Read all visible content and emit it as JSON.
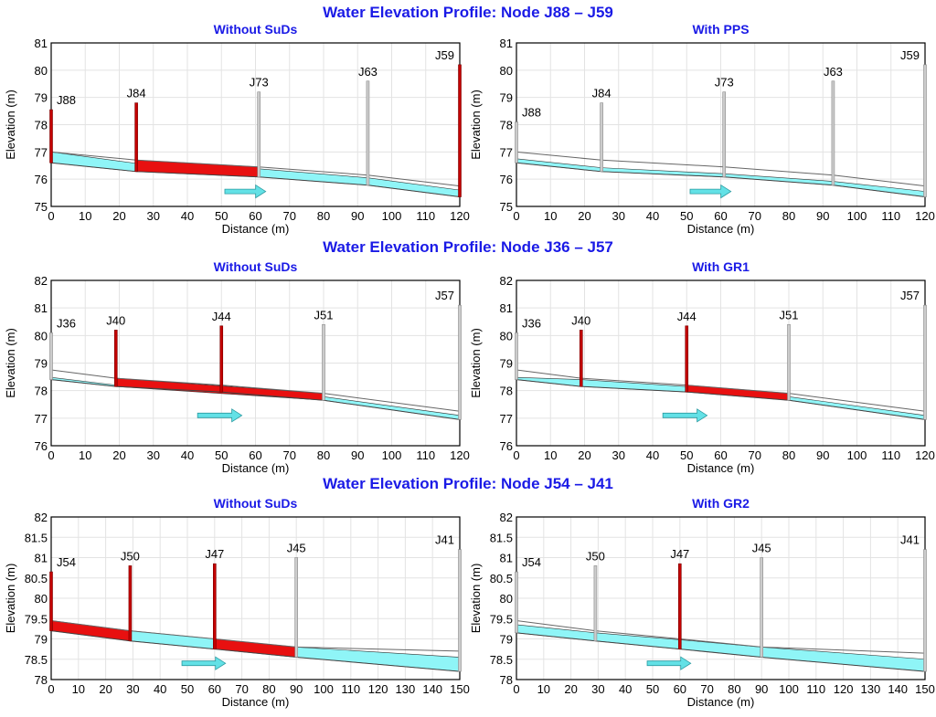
{
  "colors": {
    "surcharge": "#e81010",
    "water": "#8ff5f7",
    "pipe_outline": "#666666",
    "node_red": "#c40000",
    "node_grey": "#cccccc",
    "arrow": "#63e1e6",
    "title": "#1a1ae6",
    "grid": "#e3e3e3"
  },
  "sections": [
    {
      "title": "Water Elevation Profile:  Node J88 – J59"
    },
    {
      "title": "Water Elevation Profile:  Node J36 – J57"
    },
    {
      "title": "Water Elevation Profile:  Node J54 – J41"
    }
  ],
  "chart_data": [
    {
      "type": "area",
      "title": "Without SuDs",
      "xlabel": "Distance (m)",
      "ylabel": "Elevation (m)",
      "xlim": [
        0,
        120
      ],
      "ylim": [
        75,
        81
      ],
      "xticks": [
        0,
        10,
        20,
        30,
        40,
        50,
        60,
        70,
        80,
        90,
        100,
        110,
        120
      ],
      "yticks": [
        75,
        76,
        77,
        78,
        79,
        80,
        81
      ],
      "nodes": [
        {
          "name": "J88",
          "x": 0,
          "invert": 76.6,
          "crown": 77.0,
          "rim": 78.55,
          "surcharged": true
        },
        {
          "name": "J84",
          "x": 25,
          "invert": 76.28,
          "crown": 76.7,
          "rim": 78.8,
          "surcharged": true
        },
        {
          "name": "J73",
          "x": 61,
          "invert": 76.08,
          "crown": 76.45,
          "rim": 79.2,
          "surcharged": false
        },
        {
          "name": "J63",
          "x": 93,
          "invert": 75.78,
          "crown": 76.15,
          "rim": 79.6,
          "surcharged": false
        },
        {
          "name": "J59",
          "x": 120,
          "invert": 75.35,
          "crown": 75.75,
          "rim": 80.2,
          "surcharged": true
        }
      ],
      "water": [
        {
          "x": 0,
          "low": 76.6,
          "high": 77.0,
          "full": false
        },
        {
          "x": 25,
          "low": 76.28,
          "high": 76.58,
          "full": false
        },
        {
          "x": 25,
          "low": 76.28,
          "high": 76.7,
          "full": true
        },
        {
          "x": 61,
          "low": 76.08,
          "high": 76.45,
          "full": true
        },
        {
          "x": 61,
          "low": 76.08,
          "high": 76.38,
          "full": false
        },
        {
          "x": 93,
          "low": 75.78,
          "high": 76.05,
          "full": false
        },
        {
          "x": 120,
          "low": 75.35,
          "high": 75.6,
          "full": false
        }
      ],
      "flow_arrow": {
        "x_from": 51,
        "x_to": 63,
        "y": 75.55
      }
    },
    {
      "type": "area",
      "title": "With PPS",
      "xlabel": "Distance (m)",
      "ylabel": "Elevation (m)",
      "xlim": [
        0,
        120
      ],
      "ylim": [
        75,
        81
      ],
      "xticks": [
        0,
        10,
        20,
        30,
        40,
        50,
        60,
        70,
        80,
        90,
        100,
        110,
        120
      ],
      "yticks": [
        75,
        76,
        77,
        78,
        79,
        80,
        81
      ],
      "nodes": [
        {
          "name": "J88",
          "x": 0,
          "invert": 76.6,
          "crown": 77.0,
          "rim": 78.1,
          "surcharged": false
        },
        {
          "name": "J84",
          "x": 25,
          "invert": 76.28,
          "crown": 76.7,
          "rim": 78.8,
          "surcharged": false
        },
        {
          "name": "J73",
          "x": 61,
          "invert": 76.08,
          "crown": 76.45,
          "rim": 79.2,
          "surcharged": false
        },
        {
          "name": "J63",
          "x": 93,
          "invert": 75.78,
          "crown": 76.15,
          "rim": 79.6,
          "surcharged": false
        },
        {
          "name": "J59",
          "x": 120,
          "invert": 75.35,
          "crown": 75.75,
          "rim": 80.2,
          "surcharged": false
        }
      ],
      "water": [
        {
          "x": 0,
          "low": 76.6,
          "high": 76.75,
          "full": false
        },
        {
          "x": 25,
          "low": 76.28,
          "high": 76.42,
          "full": false
        },
        {
          "x": 61,
          "low": 76.08,
          "high": 76.2,
          "full": false
        },
        {
          "x": 93,
          "low": 75.78,
          "high": 75.92,
          "full": false
        },
        {
          "x": 120,
          "low": 75.35,
          "high": 75.55,
          "full": false
        }
      ],
      "flow_arrow": {
        "x_from": 51,
        "x_to": 63,
        "y": 75.55
      }
    },
    {
      "type": "area",
      "title": "Without SuDs",
      "xlabel": "Distance (m)",
      "ylabel": "Elevation (m)",
      "xlim": [
        0,
        120
      ],
      "ylim": [
        76,
        82
      ],
      "xticks": [
        0,
        10,
        20,
        30,
        40,
        50,
        60,
        70,
        80,
        90,
        100,
        110,
        120
      ],
      "yticks": [
        76,
        77,
        78,
        79,
        80,
        81,
        82
      ],
      "nodes": [
        {
          "name": "J36",
          "x": 0,
          "invert": 78.4,
          "crown": 78.75,
          "rim": 80.1,
          "surcharged": false
        },
        {
          "name": "J40",
          "x": 19,
          "invert": 78.15,
          "crown": 78.45,
          "rim": 80.2,
          "surcharged": true
        },
        {
          "name": "J44",
          "x": 50,
          "invert": 77.95,
          "crown": 78.2,
          "rim": 80.35,
          "surcharged": true
        },
        {
          "name": "J51",
          "x": 80,
          "invert": 77.65,
          "crown": 77.9,
          "rim": 80.4,
          "surcharged": false
        },
        {
          "name": "J57",
          "x": 120,
          "invert": 76.95,
          "crown": 77.25,
          "rim": 81.1,
          "surcharged": false
        }
      ],
      "water": [
        {
          "x": 0,
          "low": 78.4,
          "high": 78.48,
          "full": false
        },
        {
          "x": 19,
          "low": 78.15,
          "high": 78.2,
          "full": false
        },
        {
          "x": 19,
          "low": 78.15,
          "high": 78.45,
          "full": true
        },
        {
          "x": 80,
          "low": 77.65,
          "high": 77.9,
          "full": true
        },
        {
          "x": 80,
          "low": 77.65,
          "high": 77.78,
          "full": false
        },
        {
          "x": 120,
          "low": 76.95,
          "high": 77.1,
          "full": false
        }
      ],
      "flow_arrow": {
        "x_from": 43,
        "x_to": 56,
        "y": 77.1
      }
    },
    {
      "type": "area",
      "title": "With GR1",
      "xlabel": "Distance (m)",
      "ylabel": "Elevation (m)",
      "xlim": [
        0,
        120
      ],
      "ylim": [
        76,
        82
      ],
      "xticks": [
        0,
        10,
        20,
        30,
        40,
        50,
        60,
        70,
        80,
        90,
        100,
        110,
        120
      ],
      "yticks": [
        76,
        77,
        78,
        79,
        80,
        81,
        82
      ],
      "nodes": [
        {
          "name": "J36",
          "x": 0,
          "invert": 78.4,
          "crown": 78.75,
          "rim": 80.1,
          "surcharged": false
        },
        {
          "name": "J40",
          "x": 19,
          "invert": 78.15,
          "crown": 78.45,
          "rim": 80.2,
          "surcharged": true
        },
        {
          "name": "J44",
          "x": 50,
          "invert": 77.95,
          "crown": 78.2,
          "rim": 80.35,
          "surcharged": true
        },
        {
          "name": "J51",
          "x": 80,
          "invert": 77.65,
          "crown": 77.9,
          "rim": 80.4,
          "surcharged": false
        },
        {
          "name": "J57",
          "x": 120,
          "invert": 76.95,
          "crown": 77.25,
          "rim": 81.1,
          "surcharged": false
        }
      ],
      "water": [
        {
          "x": 0,
          "low": 78.4,
          "high": 78.48,
          "full": false
        },
        {
          "x": 19,
          "low": 78.15,
          "high": 78.4,
          "full": false
        },
        {
          "x": 50,
          "low": 77.95,
          "high": 78.15,
          "full": false
        },
        {
          "x": 50,
          "low": 77.95,
          "high": 78.2,
          "full": true
        },
        {
          "x": 80,
          "low": 77.65,
          "high": 77.9,
          "full": true
        },
        {
          "x": 80,
          "low": 77.65,
          "high": 77.78,
          "full": false
        },
        {
          "x": 120,
          "low": 76.95,
          "high": 77.1,
          "full": false
        }
      ],
      "flow_arrow": {
        "x_from": 43,
        "x_to": 56,
        "y": 77.1
      }
    },
    {
      "type": "area",
      "title": "Without SuDs",
      "xlabel": "Distance (m)",
      "ylabel": "Elevation (m)",
      "xlim": [
        0,
        150
      ],
      "ylim": [
        78,
        82
      ],
      "xticks": [
        0,
        10,
        20,
        30,
        40,
        50,
        60,
        70,
        80,
        90,
        100,
        110,
        120,
        130,
        140,
        150
      ],
      "yticks": [
        78,
        78.5,
        79,
        79.5,
        80,
        80.5,
        81,
        81.5,
        82
      ],
      "nodes": [
        {
          "name": "J54",
          "x": 0,
          "invert": 79.2,
          "crown": 79.45,
          "rim": 80.65,
          "surcharged": true
        },
        {
          "name": "J50",
          "x": 29,
          "invert": 78.95,
          "crown": 79.2,
          "rim": 80.8,
          "surcharged": true
        },
        {
          "name": "J47",
          "x": 60,
          "invert": 78.75,
          "crown": 79.0,
          "rim": 80.85,
          "surcharged": true
        },
        {
          "name": "J45",
          "x": 90,
          "invert": 78.55,
          "crown": 78.8,
          "rim": 81.0,
          "surcharged": false
        },
        {
          "name": "J41",
          "x": 150,
          "invert": 78.2,
          "crown": 78.7,
          "rim": 81.2,
          "surcharged": false
        }
      ],
      "water": [
        {
          "x": 0,
          "low": 79.2,
          "high": 79.45,
          "full": true
        },
        {
          "x": 29,
          "low": 78.95,
          "high": 79.2,
          "full": true
        },
        {
          "x": 29,
          "low": 78.95,
          "high": 79.2,
          "full": false
        },
        {
          "x": 60,
          "low": 78.75,
          "high": 79.0,
          "full": false
        },
        {
          "x": 60,
          "low": 78.75,
          "high": 79.0,
          "full": true
        },
        {
          "x": 90,
          "low": 78.55,
          "high": 78.8,
          "full": true
        },
        {
          "x": 90,
          "low": 78.55,
          "high": 78.8,
          "full": false
        },
        {
          "x": 150,
          "low": 78.2,
          "high": 78.55,
          "full": false
        }
      ],
      "flow_arrow": {
        "x_from": 48,
        "x_to": 64,
        "y": 78.4
      }
    },
    {
      "type": "area",
      "title": "With GR2",
      "xlabel": "Distance (m)",
      "ylabel": "Elevation (m)",
      "xlim": [
        0,
        150
      ],
      "ylim": [
        78,
        82
      ],
      "xticks": [
        0,
        10,
        20,
        30,
        40,
        50,
        60,
        70,
        80,
        90,
        100,
        110,
        120,
        130,
        140,
        150
      ],
      "yticks": [
        78,
        78.5,
        79,
        79.5,
        80,
        80.5,
        81,
        81.5,
        82
      ],
      "nodes": [
        {
          "name": "J54",
          "x": 0,
          "invert": 79.15,
          "crown": 79.45,
          "rim": 80.65,
          "surcharged": false
        },
        {
          "name": "J50",
          "x": 29,
          "invert": 78.95,
          "crown": 79.2,
          "rim": 80.8,
          "surcharged": false
        },
        {
          "name": "J47",
          "x": 60,
          "invert": 78.75,
          "crown": 79.0,
          "rim": 80.85,
          "surcharged": true
        },
        {
          "name": "J45",
          "x": 90,
          "invert": 78.55,
          "crown": 78.8,
          "rim": 81.0,
          "surcharged": false
        },
        {
          "name": "J41",
          "x": 150,
          "invert": 78.2,
          "crown": 78.65,
          "rim": 81.2,
          "surcharged": false
        }
      ],
      "water": [
        {
          "x": 0,
          "low": 79.15,
          "high": 79.35,
          "full": false
        },
        {
          "x": 29,
          "low": 78.95,
          "high": 79.15,
          "full": false
        },
        {
          "x": 60,
          "low": 78.75,
          "high": 78.98,
          "full": false
        },
        {
          "x": 90,
          "low": 78.55,
          "high": 78.8,
          "full": false
        },
        {
          "x": 150,
          "low": 78.2,
          "high": 78.5,
          "full": false
        }
      ],
      "flow_arrow": {
        "x_from": 48,
        "x_to": 64,
        "y": 78.4
      }
    }
  ]
}
